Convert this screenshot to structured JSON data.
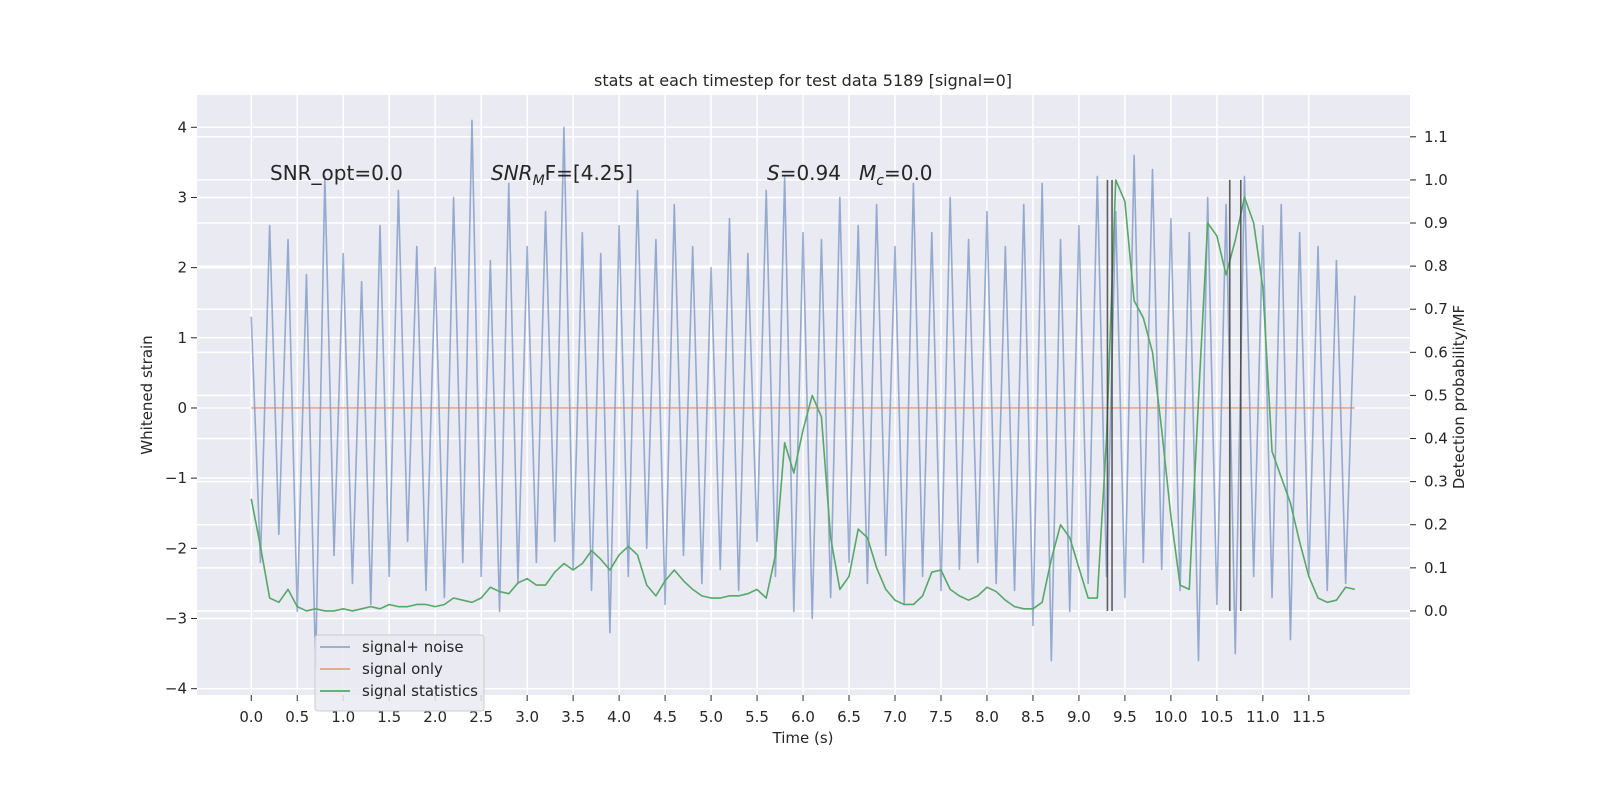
{
  "chart_data": {
    "type": "line",
    "title": "stats at each timestep for test data 5189 [signal=0]",
    "xlabel": "Time (s)",
    "ylabel": "Whitened strain",
    "y2label": "Detection probability/MF",
    "x": [
      0,
      0.1,
      0.2,
      0.3,
      0.4,
      0.5,
      0.6,
      0.7,
      0.8,
      0.9,
      1,
      1.1,
      1.2,
      1.3,
      1.4,
      1.5,
      1.6,
      1.7,
      1.8,
      1.9,
      2,
      2.1,
      2.2,
      2.3,
      2.4,
      2.5,
      2.6,
      2.7,
      2.8,
      2.9,
      3,
      3.1,
      3.2,
      3.3,
      3.4,
      3.5,
      3.6,
      3.7,
      3.8,
      3.9,
      4,
      4.1,
      4.2,
      4.3,
      4.4,
      4.5,
      4.6,
      4.7,
      4.8,
      4.9,
      5,
      5.1,
      5.2,
      5.3,
      5.4,
      5.5,
      5.6,
      5.7,
      5.8,
      5.9,
      6,
      6.1,
      6.2,
      6.3,
      6.4,
      6.5,
      6.6,
      6.7,
      6.8,
      6.9,
      7,
      7.1,
      7.2,
      7.3,
      7.4,
      7.5,
      7.6,
      7.7,
      7.8,
      7.9,
      8,
      8.1,
      8.2,
      8.3,
      8.4,
      8.5,
      8.6,
      8.7,
      8.8,
      8.9,
      9,
      9.1,
      9.2,
      9.3,
      9.4,
      9.5,
      9.6,
      9.7,
      9.8,
      9.9,
      10,
      10.1,
      10.2,
      10.3,
      10.4,
      10.5,
      10.6,
      10.7,
      10.8,
      10.9,
      11,
      11.1,
      11.2,
      11.3,
      11.4,
      11.5,
      11.6,
      11.7,
      11.8,
      11.9,
      12
    ],
    "series": [
      {
        "name": "signal+ noise",
        "color": "#4c72b0",
        "opacity": 0.55,
        "axis": "y",
        "values": [
          1.3,
          -2.2,
          2.6,
          -1.8,
          2.4,
          -2.9,
          1.9,
          -3.7,
          3.3,
          -2.1,
          2.2,
          -2.5,
          1.8,
          -2.8,
          2.6,
          -2.4,
          3.1,
          -1.9,
          2.3,
          -2.6,
          2.0,
          -2.7,
          3.0,
          -2.2,
          4.1,
          -2.4,
          2.1,
          -2.9,
          3.2,
          -2.5,
          2.3,
          -2.2,
          2.8,
          -1.9,
          4.0,
          -2.3,
          2.5,
          -2.6,
          2.2,
          -3.2,
          2.6,
          -2.4,
          3.1,
          -2.0,
          2.4,
          -2.8,
          2.9,
          -2.1,
          2.3,
          -2.5,
          2.0,
          -2.3,
          2.7,
          -2.6,
          2.2,
          -1.9,
          3.1,
          -2.4,
          3.3,
          -2.9,
          2.5,
          -3.0,
          2.4,
          -2.7,
          3.0,
          -2.2,
          2.6,
          -2.5,
          2.9,
          -2.1,
          2.3,
          -2.8,
          3.2,
          -2.4,
          2.5,
          -2.6,
          3.0,
          -2.3,
          2.4,
          -2.2,
          2.8,
          -2.5,
          2.3,
          -2.6,
          2.9,
          -3.1,
          3.2,
          -3.6,
          2.4,
          -2.9,
          2.6,
          -2.5,
          3.3,
          -2.4,
          2.8,
          -2.7,
          3.6,
          -2.2,
          3.4,
          -2.3,
          2.7,
          -2.6,
          2.5,
          -3.6,
          3.0,
          -2.8,
          2.9,
          -3.5,
          3.3,
          -2.4,
          2.6,
          -2.7,
          2.9,
          -3.3,
          2.5,
          -2.4,
          2.3,
          -2.6,
          2.1,
          -2.5,
          1.6
        ]
      },
      {
        "name": "signal only",
        "color": "#dd8452",
        "opacity": 0.7,
        "axis": "y",
        "values": [
          0,
          0,
          0,
          0,
          0,
          0,
          0,
          0,
          0,
          0,
          0,
          0,
          0,
          0,
          0,
          0,
          0,
          0,
          0,
          0,
          0,
          0,
          0,
          0,
          0,
          0,
          0,
          0,
          0,
          0,
          0,
          0,
          0,
          0,
          0,
          0,
          0,
          0,
          0,
          0,
          0,
          0,
          0,
          0,
          0,
          0,
          0,
          0,
          0,
          0,
          0,
          0,
          0,
          0,
          0,
          0,
          0,
          0,
          0,
          0,
          0,
          0,
          0,
          0,
          0,
          0,
          0,
          0,
          0,
          0,
          0,
          0,
          0,
          0,
          0,
          0,
          0,
          0,
          0,
          0,
          0,
          0,
          0,
          0,
          0,
          0,
          0,
          0,
          0,
          0,
          0,
          0,
          0,
          0,
          0,
          0,
          0,
          0,
          0,
          0,
          0,
          0,
          0,
          0,
          0,
          0,
          0,
          0,
          0,
          0,
          0,
          0,
          0,
          0,
          0,
          0,
          0,
          0,
          0,
          0,
          0
        ]
      },
      {
        "name": "signal statistics",
        "color": "#55a868",
        "opacity": 1,
        "axis": "y2",
        "values": [
          0.26,
          0.15,
          0.03,
          0.02,
          0.05,
          0.01,
          0.0,
          0.005,
          0.0,
          0.0,
          0.005,
          0.0,
          0.005,
          0.01,
          0.005,
          0.015,
          0.01,
          0.01,
          0.015,
          0.015,
          0.01,
          0.015,
          0.03,
          0.025,
          0.02,
          0.03,
          0.055,
          0.045,
          0.04,
          0.065,
          0.075,
          0.06,
          0.06,
          0.09,
          0.11,
          0.095,
          0.11,
          0.14,
          0.12,
          0.095,
          0.13,
          0.15,
          0.13,
          0.06,
          0.035,
          0.07,
          0.095,
          0.07,
          0.05,
          0.035,
          0.03,
          0.03,
          0.035,
          0.035,
          0.04,
          0.05,
          0.03,
          0.13,
          0.39,
          0.32,
          0.42,
          0.5,
          0.45,
          0.17,
          0.05,
          0.08,
          0.19,
          0.17,
          0.1,
          0.05,
          0.025,
          0.015,
          0.015,
          0.035,
          0.09,
          0.095,
          0.05,
          0.035,
          0.025,
          0.035,
          0.055,
          0.045,
          0.025,
          0.01,
          0.005,
          0.005,
          0.02,
          0.12,
          0.2,
          0.17,
          0.1,
          0.03,
          0.03,
          0.4,
          1.0,
          0.95,
          0.72,
          0.68,
          0.6,
          0.42,
          0.22,
          0.06,
          0.05,
          0.49,
          0.9,
          0.87,
          0.78,
          0.86,
          0.96,
          0.9,
          0.75,
          0.37,
          0.31,
          0.25,
          0.16,
          0.08,
          0.03,
          0.02,
          0.025,
          0.055,
          0.05
        ]
      }
    ],
    "vlines": {
      "x": [
        9.31,
        9.36,
        10.64,
        10.76
      ],
      "y2range": [
        0,
        1.0
      ],
      "color": "#3a3a3a"
    },
    "annotations": [
      [
        "SNR_opt=0.0"
      ],
      [
        "SNR",
        "M",
        "F=[4.25]"
      ],
      [
        "S",
        "=0.94"
      ],
      [
        "M",
        "c",
        "=0.0"
      ]
    ],
    "xlim": [
      -0.59,
      12.6
    ],
    "ylim": [
      -4.09,
      4.46
    ],
    "y2lim": [
      -0.195,
      1.197
    ],
    "xticks": [
      {
        "value": 0,
        "label": "0.0"
      },
      0.5,
      {
        "value": 1,
        "label": "1.0"
      },
      1.5,
      {
        "value": 2,
        "label": "2.0"
      },
      2.5,
      {
        "value": 3,
        "label": "3.0"
      },
      3.5,
      {
        "value": 4,
        "label": "4.0"
      },
      4.5,
      {
        "value": 5,
        "label": "5.0"
      },
      5.5,
      {
        "value": 6,
        "label": "6.0"
      },
      6.5,
      {
        "value": 7,
        "label": "7.0"
      },
      7.5,
      {
        "value": 8,
        "label": "8.0"
      },
      8.5,
      {
        "value": 9,
        "label": "9.0"
      },
      9.5,
      {
        "value": 10,
        "label": "10.0"
      },
      10.5,
      {
        "value": 11,
        "label": "11.0"
      },
      11.5
    ],
    "yticks": [
      {
        "value": -4,
        "label": "−4"
      },
      {
        "value": -3,
        "label": "−3"
      },
      {
        "value": -2,
        "label": "−2"
      },
      {
        "value": -1,
        "label": "−1"
      },
      0,
      1,
      2,
      3,
      4
    ],
    "y2ticks": [
      {
        "value": 0,
        "label": "0.0"
      },
      0.1,
      0.2,
      0.3,
      0.4,
      0.5,
      0.6,
      0.7,
      0.8,
      0.9,
      {
        "value": 1,
        "label": "1.0"
      },
      1.1
    ],
    "grid": true,
    "background": "#eaeaf2",
    "legend": "lower left"
  }
}
